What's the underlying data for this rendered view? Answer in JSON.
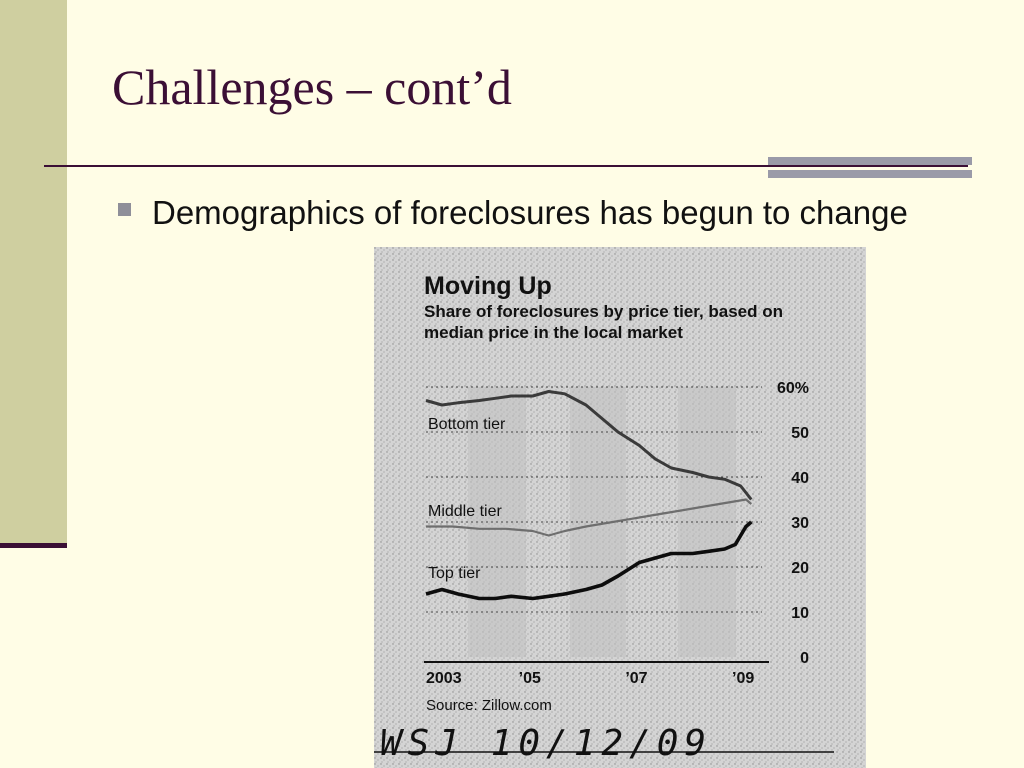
{
  "slide": {
    "title": "Challenges – cont’d",
    "bullet": "Demographics of foreclosures has begun to change"
  },
  "colors": {
    "background": "#fffde6",
    "title_color": "#3b0f35",
    "left_band": "#cfcfa0",
    "bullet_marker": "#8f8f99"
  },
  "chart_data": {
    "type": "line",
    "title": "Moving Up",
    "subtitle": "Share of foreclosures by price tier, based on median price in the local market",
    "source": "Source: Zillow.com",
    "handwritten_note": "WSJ 10/12/09",
    "x_tick_labels": [
      "2003",
      "’05",
      "’07",
      "’09"
    ],
    "x_ticks": [
      2003,
      2005,
      2007,
      2009
    ],
    "xlim": [
      2003,
      2009.3
    ],
    "y_tick_labels": [
      "60%",
      "50",
      "40",
      "30",
      "20",
      "10",
      "0"
    ],
    "y_ticks": [
      60,
      50,
      40,
      30,
      20,
      10,
      0
    ],
    "ylim": [
      0,
      60
    ],
    "grid": true,
    "series": [
      {
        "name": "Bottom tier",
        "x": [
          2003.0,
          2003.3,
          2003.6,
          2004.0,
          2004.3,
          2004.6,
          2005.0,
          2005.3,
          2005.6,
          2006.0,
          2006.3,
          2006.6,
          2007.0,
          2007.3,
          2007.6,
          2008.0,
          2008.3,
          2008.6,
          2008.9,
          2009.1
        ],
        "y": [
          57,
          56,
          56.5,
          57,
          57.5,
          58,
          58,
          59,
          58.5,
          56,
          53,
          50,
          47,
          44,
          42,
          41,
          40,
          39.5,
          38,
          35
        ]
      },
      {
        "name": "Middle tier",
        "x": [
          2003.0,
          2003.5,
          2004.0,
          2004.5,
          2005.0,
          2005.3,
          2005.6,
          2006.0,
          2006.5,
          2007.0,
          2007.5,
          2008.0,
          2008.5,
          2009.0,
          2009.1
        ],
        "y": [
          29,
          29,
          28.5,
          28.5,
          28,
          27,
          28,
          29,
          30,
          31,
          32,
          33,
          34,
          35,
          34
        ]
      },
      {
        "name": "Top tier",
        "x": [
          2003.0,
          2003.3,
          2003.6,
          2004.0,
          2004.3,
          2004.6,
          2005.0,
          2005.3,
          2005.6,
          2006.0,
          2006.3,
          2006.6,
          2007.0,
          2007.3,
          2007.6,
          2008.0,
          2008.3,
          2008.6,
          2008.8,
          2009.0,
          2009.1
        ],
        "y": [
          14,
          15,
          14,
          13,
          13,
          13.5,
          13,
          13.5,
          14,
          15,
          16,
          18,
          21,
          22,
          23,
          23,
          23.5,
          24,
          25,
          29,
          30
        ]
      }
    ]
  }
}
